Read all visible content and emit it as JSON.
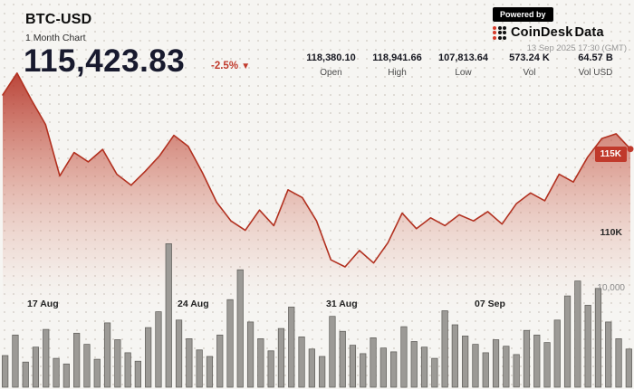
{
  "header": {
    "symbol": "BTC-USD",
    "subtitle": "1 Month Chart",
    "price": "115,423.83",
    "change": "-2.5%",
    "change_arrow": "▼",
    "stats": [
      {
        "value": "118,380.10",
        "label": "Open"
      },
      {
        "value": "118,941.66",
        "label": "High"
      },
      {
        "value": "107,813.64",
        "label": "Low"
      },
      {
        "value": "573.24 K",
        "label": "Vol"
      },
      {
        "value": "64.57 B",
        "label": "Vol USD"
      }
    ],
    "powered_by": "Powered by",
    "brand": "CoinDesk",
    "brand_suffix": "Data",
    "timestamp": "13 Sep 2025 17:30 (GMT)"
  },
  "colors": {
    "accent": "#c0392b",
    "line": "#b23120",
    "price_text": "#181a2e",
    "volume_bar_fill": "#9c9a96",
    "volume_bar_stroke": "#5b5955"
  },
  "chart_data": {
    "type": "area",
    "title": "BTC-USD 1 Month Chart",
    "x_ticks": [
      "17 Aug",
      "24 Aug",
      "31 Aug",
      "07 Sep"
    ],
    "y_ticks_price": [
      "115K",
      "110K"
    ],
    "y_tick_volume": "10,000",
    "price_axis_range": [
      106000,
      121500
    ],
    "volume_axis_range": [
      0,
      16000
    ],
    "last_price": 115423.83,
    "price_series": [
      118900,
      120300,
      118600,
      117000,
      113700,
      115200,
      114600,
      115400,
      113800,
      113100,
      114000,
      115000,
      116300,
      115600,
      113900,
      112000,
      110800,
      110200,
      111500,
      110500,
      112800,
      112300,
      110800,
      108300,
      107850,
      108900,
      108100,
      109400,
      111300,
      110300,
      111000,
      110500,
      111200,
      110800,
      111400,
      110600,
      111900,
      112600,
      112100,
      113800,
      113300,
      114900,
      116100,
      116400,
      115423.83
    ],
    "volume_series": [
      3400,
      5600,
      2700,
      4300,
      6200,
      3100,
      2500,
      5800,
      4600,
      3000,
      6900,
      5100,
      3700,
      2800,
      6400,
      8100,
      15400,
      7200,
      5200,
      4000,
      3300,
      5600,
      9400,
      12600,
      7000,
      5200,
      3900,
      6300,
      8600,
      5400,
      4100,
      3300,
      7600,
      6000,
      4500,
      3600,
      5300,
      4200,
      3800,
      6500,
      4900,
      4300,
      3100,
      8200,
      6700,
      5500,
      4600,
      3700,
      5100,
      4400,
      3500,
      6100,
      5600,
      4800,
      7200,
      9800,
      11400,
      8800,
      10600,
      7000,
      5200,
      4100
    ]
  }
}
